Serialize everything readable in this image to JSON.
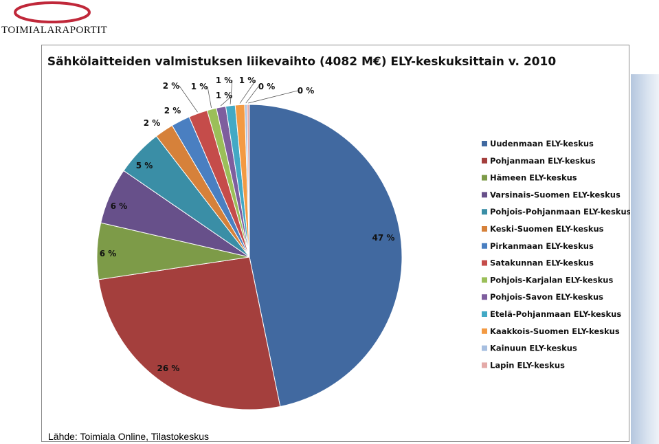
{
  "logo": {
    "text": "TOIMIALARAPORTIT",
    "swoosh_color": "#c0283a"
  },
  "source": "Lähde: Toimiala Online, Tilastokeskus",
  "chart_data": {
    "type": "pie",
    "title": "Sähkölaitteiden valmistuksen liikevaihto (4082 M€) ELY-keskuksittain v. 2010",
    "legend_position": "right",
    "categories": [
      "Uudenmaan ELY-keskus",
      "Pohjanmaan ELY-keskus",
      "Hämeen ELY-keskus",
      "Varsinais-Suomen ELY-keskus",
      "Pohjois-Pohjanmaan ELY-keskus",
      "Keski-Suomen ELY-keskus",
      "Pirkanmaan ELY-keskus",
      "Satakunnan ELY-keskus",
      "Pohjois-Karjalan ELY-keskus",
      "Pohjois-Savon ELY-keskus",
      "Etelä-Pohjanmaan ELY-keskus",
      "Kaakkois-Suomen ELY-keskus",
      "Kainuun ELY-keskus",
      "Lapin ELY-keskus"
    ],
    "values": [
      47,
      26,
      6,
      6,
      5,
      2,
      2,
      2,
      1,
      1,
      1,
      1,
      0,
      0
    ],
    "labels": [
      "47 %",
      "26 %",
      "6 %",
      "6 %",
      "5 %",
      "2 %",
      "2 %",
      "2 %",
      "1 %",
      "1 %",
      "1 %",
      "1 %",
      "0 %",
      "0 %"
    ],
    "colors": [
      "#4169a0",
      "#a43f3d",
      "#7d9b48",
      "#67508a",
      "#3a8ea6",
      "#d6813a",
      "#4a7fc1",
      "#c54c4a",
      "#9bbf59",
      "#7e5e9e",
      "#43a9c5",
      "#f39a43",
      "#a7bfe0",
      "#e4aaa8"
    ]
  }
}
